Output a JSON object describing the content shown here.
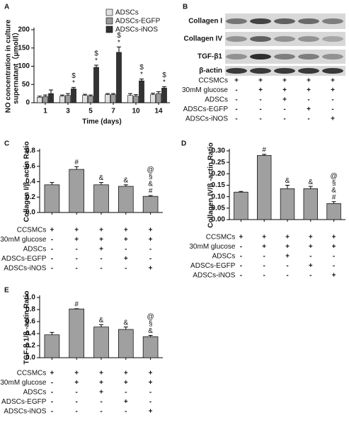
{
  "chart_data": [
    {
      "panel_label": "A",
      "type": "bar",
      "categories": [
        "1",
        "3",
        "5",
        "7",
        "10",
        "14"
      ],
      "x_label": "Time (days)",
      "y_label": [
        "NO concentration in culture",
        "supernatant（μmol/l）"
      ],
      "ylim": [
        0,
        200
      ],
      "yticks": [
        0,
        50,
        100,
        150,
        200
      ],
      "series": [
        {
          "name": "ADSCs",
          "color": "#e0e0e0",
          "values": [
            15,
            18,
            20,
            22,
            20,
            22
          ],
          "errors": [
            3,
            3,
            3,
            3,
            5,
            4
          ]
        },
        {
          "name": "ADSCs-EGFP",
          "color": "#9a9a9a",
          "values": [
            17,
            20,
            18,
            22,
            18,
            25
          ],
          "errors": [
            4,
            5,
            3,
            3,
            4,
            5
          ]
        },
        {
          "name": "ADSCs-iNOS",
          "color": "#333333",
          "values": [
            25,
            38,
            97,
            138,
            60,
            40
          ],
          "errors": [
            10,
            4,
            6,
            15,
            5,
            4
          ]
        }
      ],
      "annotations": [
        [],
        [
          "$",
          "*"
        ],
        [
          "$",
          "*"
        ],
        [
          "$",
          "*"
        ],
        [
          "$",
          "*"
        ],
        [
          "$",
          "*"
        ]
      ]
    },
    {
      "panel_label": "C",
      "type": "bar",
      "y_label": "Collagen I/β -actin Ratio",
      "color": "#a0a0a0",
      "ylim": [
        0,
        0.8
      ],
      "yticks": [
        {
          "value": 0,
          "label": "0.0"
        },
        {
          "value": 0.2,
          "label": "0.2"
        },
        {
          "value": 0.4,
          "label": "0.4"
        },
        {
          "value": 0.6,
          "label": "0.6"
        },
        {
          "value": 0.8,
          "label": "0.8"
        }
      ],
      "values": [
        0.36,
        0.56,
        0.36,
        0.34,
        0.21
      ],
      "errors": [
        0.03,
        0.035,
        0.03,
        0.02,
        0.01
      ],
      "annotations": [
        [],
        [
          "#"
        ],
        [
          "&"
        ],
        [
          "&"
        ],
        [
          "@",
          "§",
          "&",
          "#"
        ]
      ]
    },
    {
      "panel_label": "D",
      "type": "bar",
      "y_label": "Collagen IV/β -actin Ratio",
      "color": "#a0a0a0",
      "ylim": [
        0,
        0.3
      ],
      "yticks": [
        {
          "value": 0,
          "label": "0.00"
        },
        {
          "value": 0.05,
          "label": "0.05"
        },
        {
          "value": 0.1,
          "label": "0.10"
        },
        {
          "value": 0.15,
          "label": "0.15"
        },
        {
          "value": 0.2,
          "label": "0.20"
        },
        {
          "value": 0.25,
          "label": "0.25"
        },
        {
          "value": 0.3,
          "label": "0.30"
        }
      ],
      "values": [
        0.12,
        0.28,
        0.135,
        0.135,
        0.07
      ],
      "errors": [
        0.003,
        0.005,
        0.015,
        0.01,
        0.008
      ],
      "annotations": [
        [],
        [
          "#"
        ],
        [
          "&"
        ],
        [
          "&"
        ],
        [
          "@",
          "§",
          "&",
          "#"
        ]
      ]
    },
    {
      "panel_label": "E",
      "type": "bar",
      "y_label": "TGF-β 1/β -actin Ratio",
      "color": "#a0a0a0",
      "ylim": [
        0,
        1
      ],
      "yticks": [
        {
          "value": 0,
          "label": "0.0"
        },
        {
          "value": 0.2,
          "label": "0.2"
        },
        {
          "value": 0.4,
          "label": "0.4"
        },
        {
          "value": 0.6,
          "label": "0.6"
        },
        {
          "value": 0.8,
          "label": "0.8"
        },
        {
          "value": 1,
          "label": "1.0"
        }
      ],
      "values": [
        0.38,
        0.81,
        0.51,
        0.47,
        0.35
      ],
      "errors": [
        0.04,
        0.005,
        0.04,
        0.04,
        0.02
      ],
      "annotations": [
        [],
        [
          "#"
        ],
        [
          "&"
        ],
        [
          "&"
        ],
        [
          "@",
          "§",
          "&"
        ]
      ]
    }
  ],
  "blot": {
    "panel_label": "B",
    "bands": [
      "Collagen I",
      "Collagen IV",
      "TGF-β1",
      "β-actin"
    ]
  },
  "conditions": [
    {
      "label": "CCSMCs",
      "signs": [
        "+",
        "+",
        "+",
        "+",
        "+"
      ]
    },
    {
      "label": "30mM glucose",
      "signs": [
        "-",
        "+",
        "+",
        "+",
        "+"
      ]
    },
    {
      "label": "ADSCs",
      "signs": [
        "-",
        "-",
        "+",
        "-",
        "-"
      ]
    },
    {
      "label": "ADSCs-EGFP",
      "signs": [
        "-",
        "-",
        "-",
        "+",
        "-"
      ]
    },
    {
      "label": "ADSCs-iNOS",
      "signs": [
        "-",
        "-",
        "-",
        "-",
        "+"
      ]
    }
  ]
}
